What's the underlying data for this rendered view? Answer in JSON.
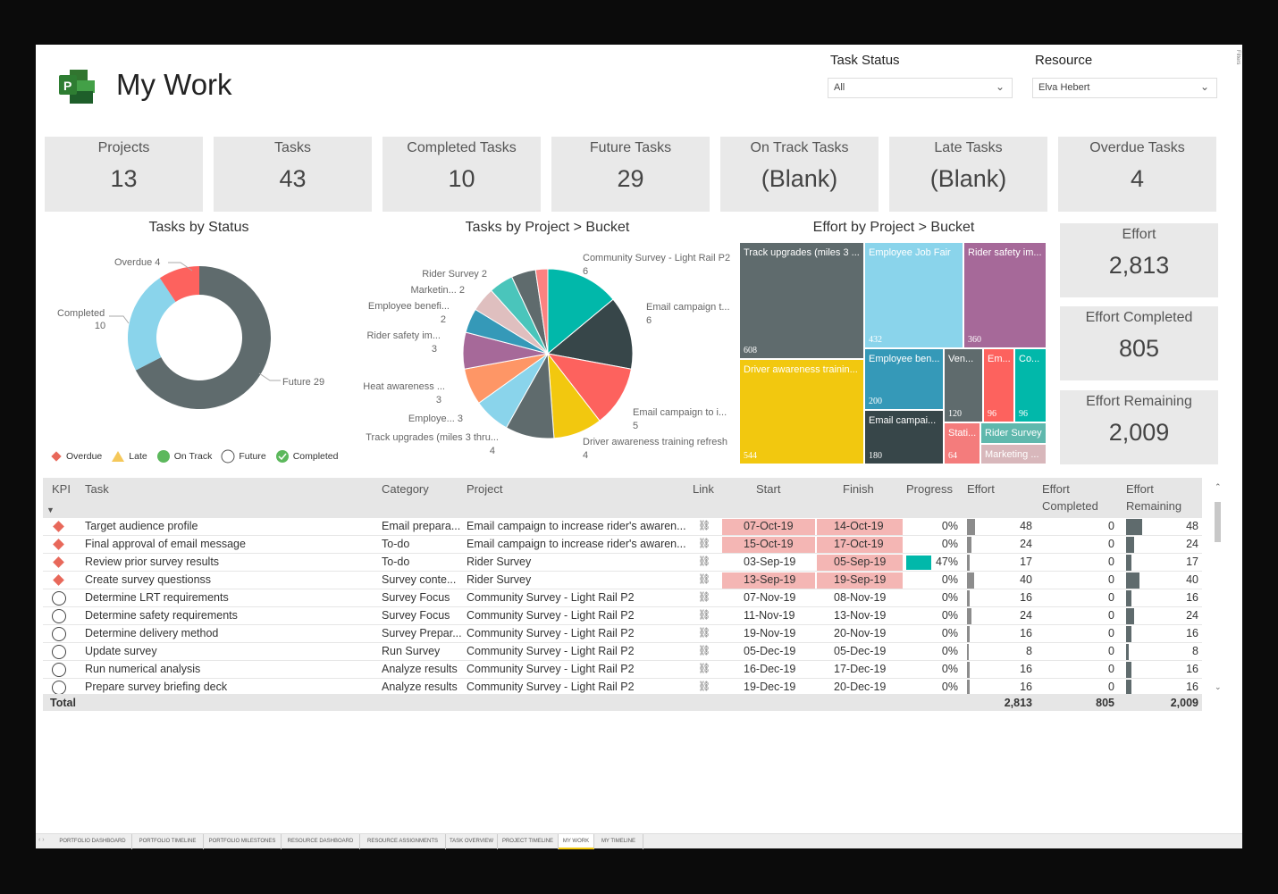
{
  "header": {
    "title": "My Work",
    "logo_letter": "P"
  },
  "filters": {
    "task_status": {
      "label": "Task Status",
      "value": "All"
    },
    "resource": {
      "label": "Resource",
      "value": "Elva Hebert"
    },
    "pane_label": "Filters"
  },
  "kpis": [
    {
      "label": "Projects",
      "value": "13"
    },
    {
      "label": "Tasks",
      "value": "43"
    },
    {
      "label": "Completed Tasks",
      "value": "10"
    },
    {
      "label": "Future Tasks",
      "value": "29"
    },
    {
      "label": "On Track Tasks",
      "value": "(Blank)"
    },
    {
      "label": "Late Tasks",
      "value": "(Blank)"
    },
    {
      "label": "Overdue Tasks",
      "value": "4"
    }
  ],
  "effort_cards": [
    {
      "label": "Effort",
      "value": "2,813"
    },
    {
      "label": "Effort Completed",
      "value": "805"
    },
    {
      "label": "Effort Remaining",
      "value": "2,009"
    }
  ],
  "legend": [
    {
      "label": "Overdue",
      "icon": "diamond",
      "color": "#e8685a"
    },
    {
      "label": "Late",
      "icon": "triangle",
      "color": "#f5c85a"
    },
    {
      "label": "On Track",
      "icon": "circle",
      "color": "#5cb85c"
    },
    {
      "label": "Future",
      "icon": "empty-circle",
      "color": "#555555"
    },
    {
      "label": "Completed",
      "icon": "check-circle",
      "color": "#5cb85c"
    }
  ],
  "chart_data": [
    {
      "type": "pie",
      "title": "Tasks by Status",
      "donut": true,
      "categories": [
        "Future",
        "Completed",
        "Overdue"
      ],
      "values": [
        29,
        10,
        4
      ],
      "colors": [
        "#5f6b6d",
        "#8ad4eb",
        "#fd625e"
      ],
      "labels": [
        "Future 29",
        "Completed",
        "10",
        "Overdue 4"
      ]
    },
    {
      "type": "pie",
      "title": "Tasks by Project > Bucket",
      "categories": [
        "Community Survey - Light Rail P2",
        "Email campaign t...",
        "Email campaign to i...",
        "Driver awareness training refresh",
        "Track upgrades (miles 3 thru...",
        "Employe...",
        "Heat awareness ...",
        "Rider safety im...",
        "Employee benefi...",
        "Marketin...",
        "Rider Survey",
        "",
        ""
      ],
      "values": [
        6,
        6,
        5,
        4,
        4,
        3,
        3,
        3,
        2,
        2,
        2,
        2,
        1
      ],
      "colors": [
        "#01b8aa",
        "#374649",
        "#fd625e",
        "#f2c80f",
        "#5f6b6d",
        "#8ad4eb",
        "#fe9666",
        "#a66999",
        "#3599b8",
        "#dfbfbf",
        "#4ac5bb",
        "#5f6b6d",
        "#fb8281"
      ]
    },
    {
      "type": "treemap",
      "title": "Effort by Project > Bucket",
      "categories": [
        "Track upgrades (miles 3 ...",
        "Driver awareness trainin...",
        "Employee Job Fair",
        "Rider safety im...",
        "Employee ben...",
        "Email campai...",
        "Ven...",
        "Em...",
        "Co...",
        "Stati...",
        "Rider Survey",
        "Marketing ..."
      ],
      "values": [
        608,
        544,
        432,
        360,
        200,
        180,
        120,
        96,
        96,
        64,
        null,
        null
      ],
      "colors": [
        "#5f6b6d",
        "#f2c80f",
        "#8ad4eb",
        "#a66999",
        "#3599b8",
        "#374649",
        "#5f6b6d",
        "#fd625e",
        "#01b8aa",
        "#f47c7c",
        "#5fb8ad",
        "#d8b7bb"
      ]
    }
  ],
  "table": {
    "columns": [
      "KPI",
      "Task",
      "Category",
      "Project",
      "Link",
      "Start",
      "Finish",
      "Progress",
      "Effort",
      "Effort Completed",
      "Effort Remaining"
    ],
    "rows": [
      {
        "kpi": "overdue",
        "task": "Target audience profile",
        "category": "Email prepara...",
        "project": "Email campaign to increase rider's awaren...",
        "start": "07-Oct-19",
        "finish": "14-Oct-19",
        "start_late": true,
        "finish_late": true,
        "progress": "0%",
        "effort": 48,
        "completed": 0,
        "remaining": 48
      },
      {
        "kpi": "overdue",
        "task": "Final approval of email message",
        "category": "To-do",
        "project": "Email campaign to increase rider's awaren...",
        "start": "15-Oct-19",
        "finish": "17-Oct-19",
        "start_late": true,
        "finish_late": true,
        "progress": "0%",
        "effort": 24,
        "completed": 0,
        "remaining": 24
      },
      {
        "kpi": "overdue",
        "task": "Review prior survey results",
        "category": "To-do",
        "project": "Rider Survey",
        "start": "03-Sep-19",
        "finish": "05-Sep-19",
        "start_late": false,
        "finish_late": true,
        "progress": "47%",
        "effort": 17,
        "completed": 0,
        "remaining": 17
      },
      {
        "kpi": "overdue",
        "task": "Create survey questionss",
        "category": "Survey conte...",
        "project": "Rider Survey",
        "start": "13-Sep-19",
        "finish": "19-Sep-19",
        "start_late": true,
        "finish_late": true,
        "progress": "0%",
        "effort": 40,
        "completed": 0,
        "remaining": 40
      },
      {
        "kpi": "future",
        "task": "Determine LRT requirements",
        "category": "Survey Focus",
        "project": "Community Survey - Light Rail P2",
        "start": "07-Nov-19",
        "finish": "08-Nov-19",
        "start_late": false,
        "finish_late": false,
        "progress": "0%",
        "effort": 16,
        "completed": 0,
        "remaining": 16
      },
      {
        "kpi": "future",
        "task": "Determine safety requirements",
        "category": "Survey Focus",
        "project": "Community Survey - Light Rail P2",
        "start": "11-Nov-19",
        "finish": "13-Nov-19",
        "start_late": false,
        "finish_late": false,
        "progress": "0%",
        "effort": 24,
        "completed": 0,
        "remaining": 24
      },
      {
        "kpi": "future",
        "task": "Determine delivery method",
        "category": "Survey Prepar...",
        "project": "Community Survey - Light Rail P2",
        "start": "19-Nov-19",
        "finish": "20-Nov-19",
        "start_late": false,
        "finish_late": false,
        "progress": "0%",
        "effort": 16,
        "completed": 0,
        "remaining": 16
      },
      {
        "kpi": "future",
        "task": "Update survey",
        "category": "Run Survey",
        "project": "Community Survey - Light Rail P2",
        "start": "05-Dec-19",
        "finish": "05-Dec-19",
        "start_late": false,
        "finish_late": false,
        "progress": "0%",
        "effort": 8,
        "completed": 0,
        "remaining": 8
      },
      {
        "kpi": "future",
        "task": "Run numerical analysis",
        "category": "Analyze results",
        "project": "Community Survey - Light Rail P2",
        "start": "16-Dec-19",
        "finish": "17-Dec-19",
        "start_late": false,
        "finish_late": false,
        "progress": "0%",
        "effort": 16,
        "completed": 0,
        "remaining": 16
      },
      {
        "kpi": "future",
        "task": "Prepare survey briefing deck",
        "category": "Analyze results",
        "project": "Community Survey - Light Rail P2",
        "start": "19-Dec-19",
        "finish": "20-Dec-19",
        "start_late": false,
        "finish_late": false,
        "progress": "0%",
        "effort": 16,
        "completed": 0,
        "remaining": 16
      }
    ],
    "total": {
      "label": "Total",
      "effort": "2,813",
      "completed": "805",
      "remaining": "2,009"
    }
  },
  "tabs": [
    "PORTFOLIO DASHBOARD",
    "PORTFOLIO TIMELINE",
    "PORTFOLIO MILESTONES",
    "RESOURCE DASHBOARD",
    "RESOURCE ASSIGNMENTS",
    "TASK OVERVIEW",
    "PROJECT TIMELINE",
    "MY WORK",
    "MY TIMELINE"
  ],
  "active_tab": "MY WORK"
}
